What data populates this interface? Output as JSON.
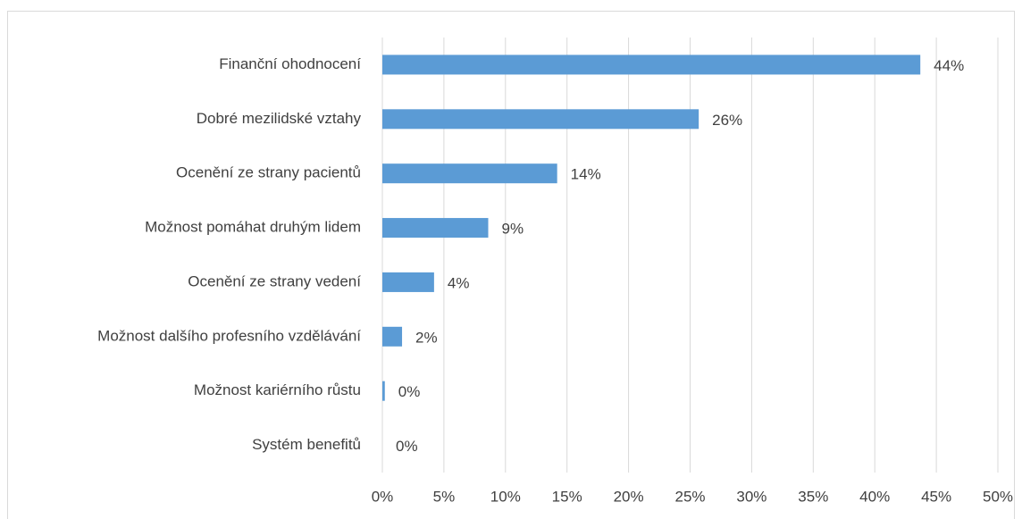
{
  "chart_data": {
    "type": "bar",
    "orientation": "horizontal",
    "categories": [
      "Finanční ohodnocení",
      "Dobré mezilidské vztahy",
      "Ocenění ze strany pacientů",
      "Možnost pomáhat druhým lidem",
      "Ocenění ze strany vedení",
      "Možnost dalšího profesního vzdělávání",
      "Možnost kariérního růstu",
      "Systém benefitů"
    ],
    "values": [
      43.7,
      25.7,
      14.2,
      8.6,
      4.2,
      1.6,
      0.2,
      0
    ],
    "value_labels": [
      "44%",
      "26%",
      "14%",
      "9%",
      "4%",
      "2%",
      "0%",
      "0%"
    ],
    "color": "#5b9bd5",
    "xlim": [
      0,
      50
    ],
    "xticks": [
      {
        "value": 0,
        "label": "0%"
      },
      {
        "value": 5,
        "label": "5%"
      },
      {
        "value": 10,
        "label": "10%"
      },
      {
        "value": 15,
        "label": "15%"
      },
      {
        "value": 20,
        "label": "20%"
      },
      {
        "value": 25,
        "label": "25%"
      },
      {
        "value": 30,
        "label": "30%"
      },
      {
        "value": 35,
        "label": "35%"
      },
      {
        "value": 40,
        "label": "40%"
      },
      {
        "value": 45,
        "label": "45%"
      },
      {
        "value": 50,
        "label": "50%"
      }
    ],
    "grid": true
  }
}
